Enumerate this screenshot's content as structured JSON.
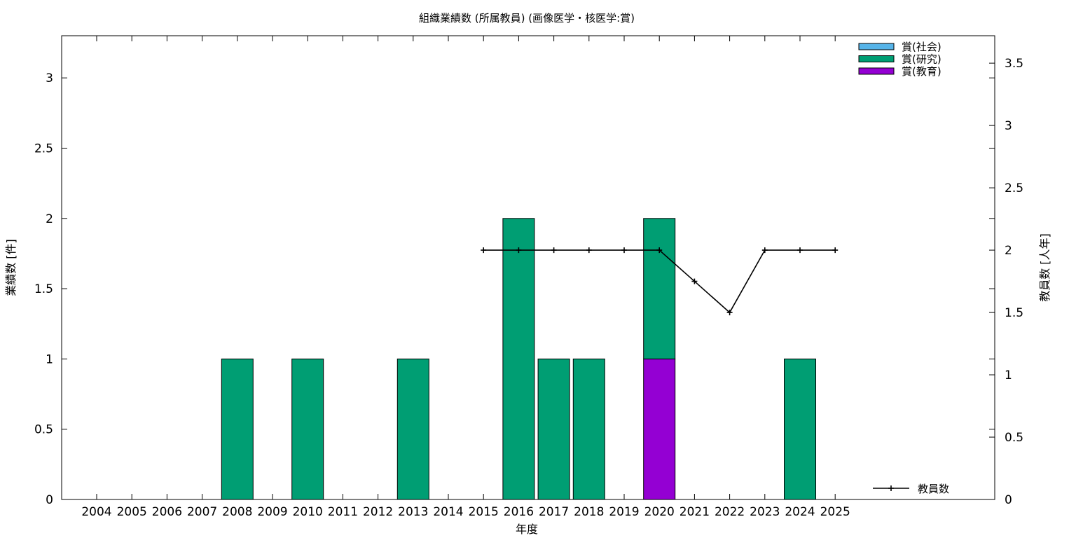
{
  "chart_data": {
    "type": "bar",
    "title": "組織業績数 (所属教員) (画像医学・核医学:賞)",
    "xlabel": "年度",
    "ylabel": "業績数 [件]",
    "y2label": "教員数 [人年]",
    "categories": [
      "2004",
      "2005",
      "2006",
      "2007",
      "2008",
      "2009",
      "2010",
      "2011",
      "2012",
      "2013",
      "2014",
      "2015",
      "2016",
      "2017",
      "2018",
      "2019",
      "2020",
      "2021",
      "2022",
      "2023",
      "2024",
      "2025"
    ],
    "ylim": [
      0,
      3.3
    ],
    "y2lim": [
      0,
      3.72
    ],
    "yticks": [
      "0",
      "0.5",
      "1",
      "1.5",
      "2",
      "2.5",
      "3"
    ],
    "y2ticks": [
      "0",
      "0.5",
      "1",
      "1.5",
      "2",
      "2.5",
      "3",
      "3.5"
    ],
    "stacked": true,
    "series": [
      {
        "name": "賞(教育)",
        "color": "#9400d3",
        "values": [
          0,
          0,
          0,
          0,
          0,
          0,
          0,
          0,
          0,
          0,
          0,
          0,
          0,
          0,
          0,
          0,
          1,
          0,
          0,
          0,
          0,
          0
        ]
      },
      {
        "name": "賞(研究)",
        "color": "#009e73",
        "values": [
          0,
          0,
          0,
          0,
          1,
          0,
          1,
          0,
          0,
          1,
          0,
          0,
          2,
          1,
          1,
          0,
          1,
          0,
          0,
          0,
          1,
          0
        ]
      },
      {
        "name": "賞(社会)",
        "color": "#56b4e9",
        "values": [
          0,
          0,
          0,
          0,
          0,
          0,
          0,
          0,
          0,
          0,
          0,
          0,
          0,
          0,
          0,
          0,
          0,
          0,
          0,
          0,
          0,
          0
        ]
      }
    ],
    "legend_order": [
      "賞(社会)",
      "賞(研究)",
      "賞(教育)"
    ],
    "legend_position": "top-right",
    "line_series": {
      "name": "教員数",
      "axis": "y2",
      "color": "#000000",
      "points": [
        {
          "x": "2015",
          "y": 2
        },
        {
          "x": "2016",
          "y": 2
        },
        {
          "x": "2017",
          "y": 2
        },
        {
          "x": "2018",
          "y": 2
        },
        {
          "x": "2019",
          "y": 2
        },
        {
          "x": "2020",
          "y": 2
        },
        {
          "x": "2021",
          "y": 1.75
        },
        {
          "x": "2022",
          "y": 1.5
        },
        {
          "x": "2023",
          "y": 2
        },
        {
          "x": "2024",
          "y": 2
        },
        {
          "x": "2025",
          "y": 2
        }
      ],
      "legend_position": "bottom-right"
    },
    "grid": false
  }
}
